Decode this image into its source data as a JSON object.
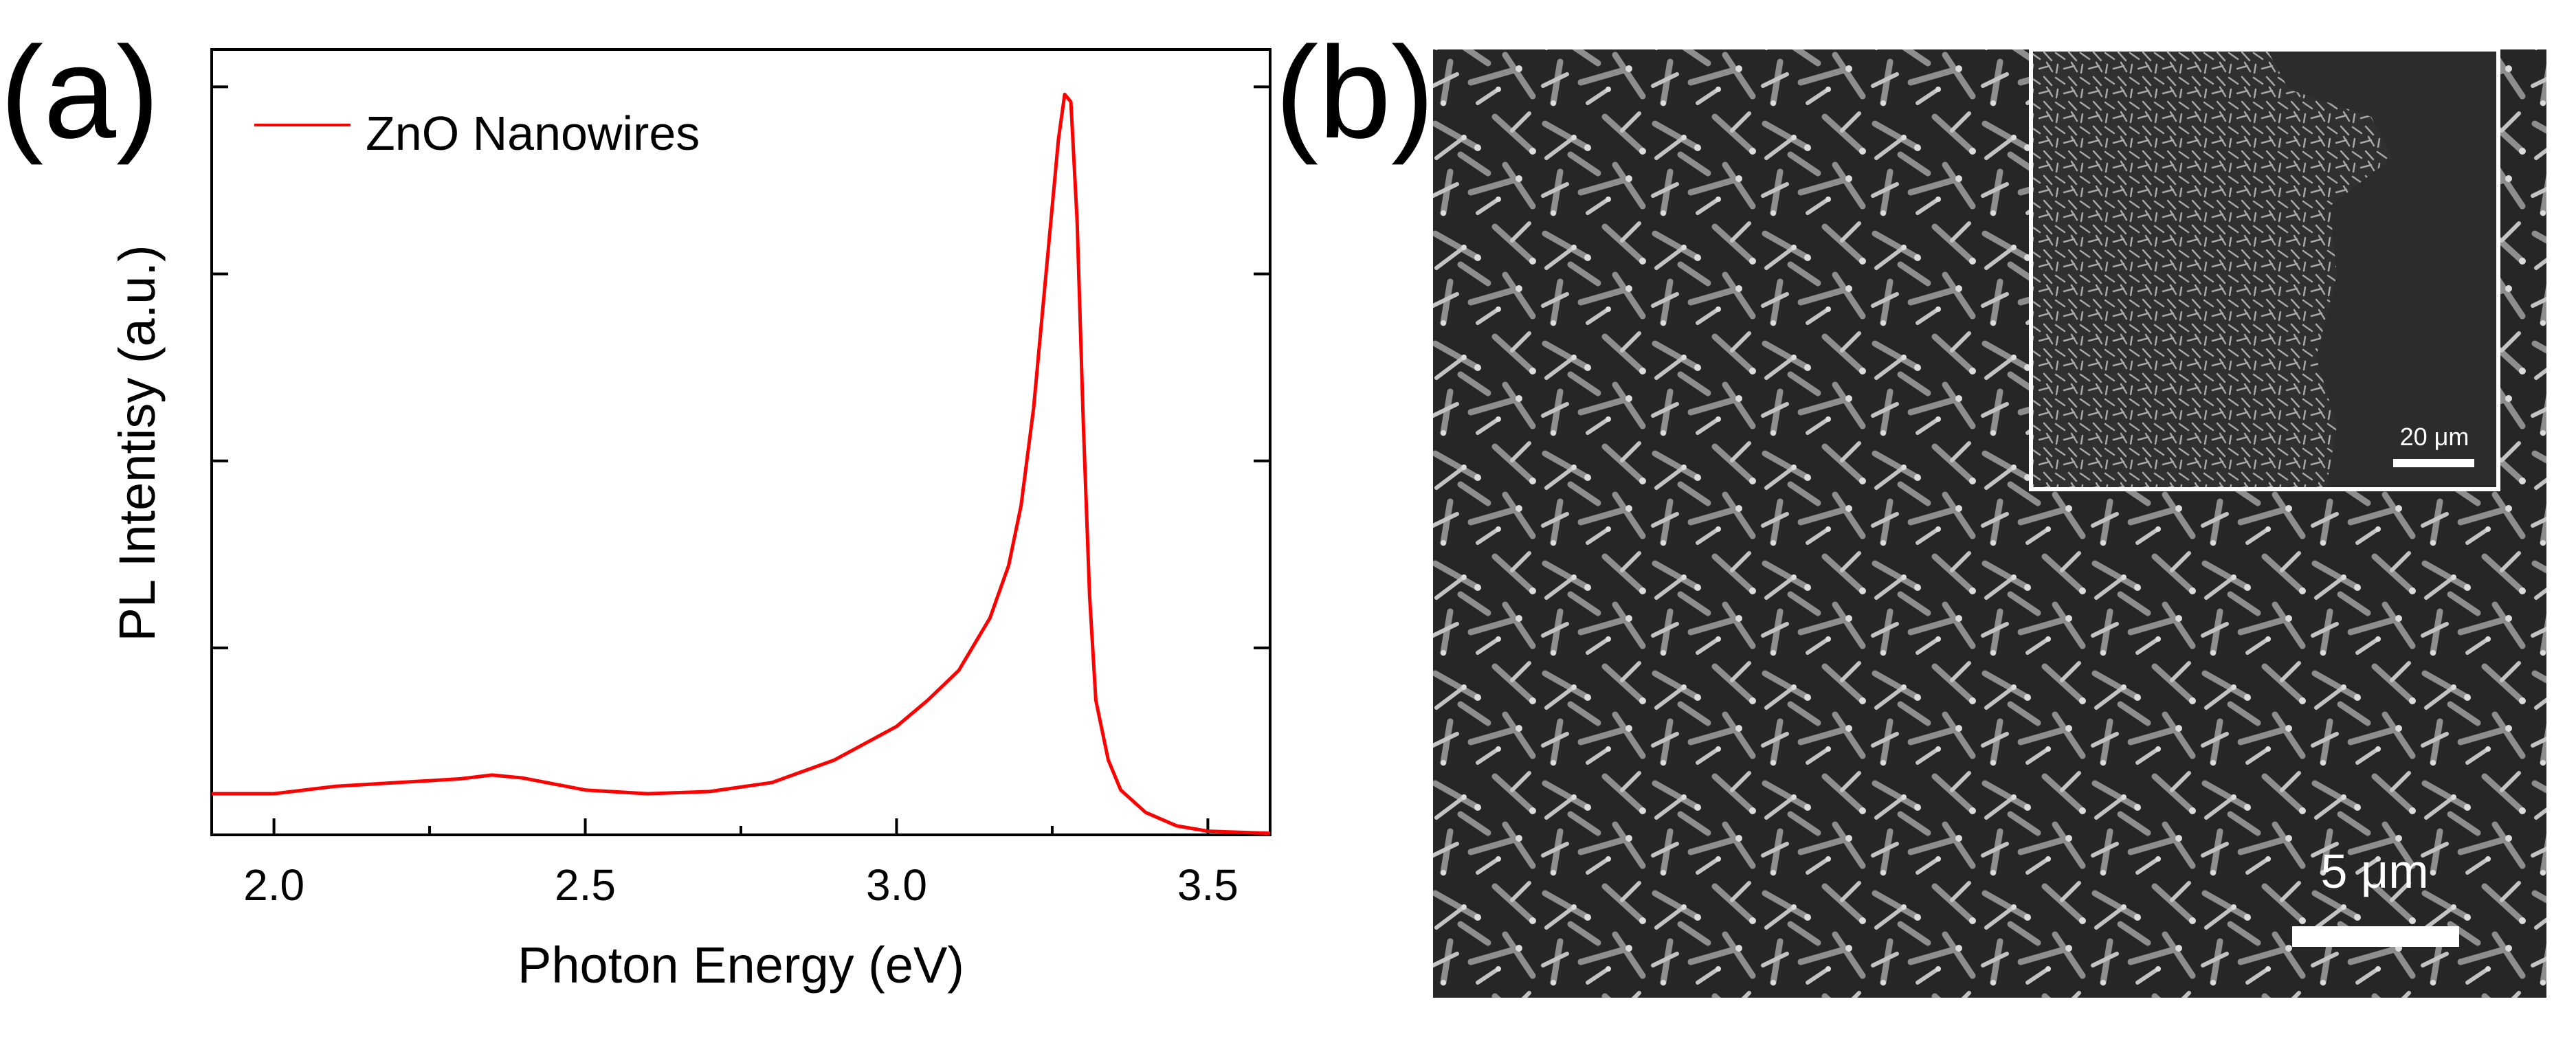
{
  "chart_data": {
    "type": "line",
    "panel_label": "(a)",
    "title": "",
    "xlabel": "Photon Energy (eV)",
    "ylabel": "PL Intentisy (a.u.)",
    "xlim": [
      1.9,
      3.6
    ],
    "ylim": [
      0,
      1.05
    ],
    "x_ticks": [
      2.0,
      2.5,
      3.0,
      3.5
    ],
    "x_tick_labels": [
      "2.0",
      "2.5",
      "3.0",
      "3.5"
    ],
    "y_ticks": [
      0.0,
      0.25,
      0.5,
      0.75,
      1.0
    ],
    "grid": false,
    "legend_position": "top-left",
    "series": [
      {
        "name": "ZnO Nanowires",
        "color": "#ff0000",
        "x": [
          1.9,
          2.0,
          2.1,
          2.2,
          2.3,
          2.35,
          2.4,
          2.5,
          2.6,
          2.7,
          2.8,
          2.9,
          3.0,
          3.05,
          3.1,
          3.15,
          3.18,
          3.2,
          3.22,
          3.24,
          3.26,
          3.27,
          3.28,
          3.29,
          3.3,
          3.31,
          3.32,
          3.34,
          3.36,
          3.4,
          3.45,
          3.5,
          3.6
        ],
        "y": [
          0.055,
          0.055,
          0.065,
          0.07,
          0.075,
          0.08,
          0.076,
          0.06,
          0.055,
          0.058,
          0.07,
          0.1,
          0.145,
          0.18,
          0.22,
          0.29,
          0.36,
          0.44,
          0.57,
          0.75,
          0.93,
          0.99,
          0.98,
          0.82,
          0.55,
          0.32,
          0.18,
          0.1,
          0.06,
          0.03,
          0.012,
          0.005,
          0.002
        ]
      }
    ]
  },
  "sem_panel": {
    "panel_label": "(b)",
    "scale_bar_label": "5 μm",
    "inset_scale_bar_label": "20 μm"
  }
}
